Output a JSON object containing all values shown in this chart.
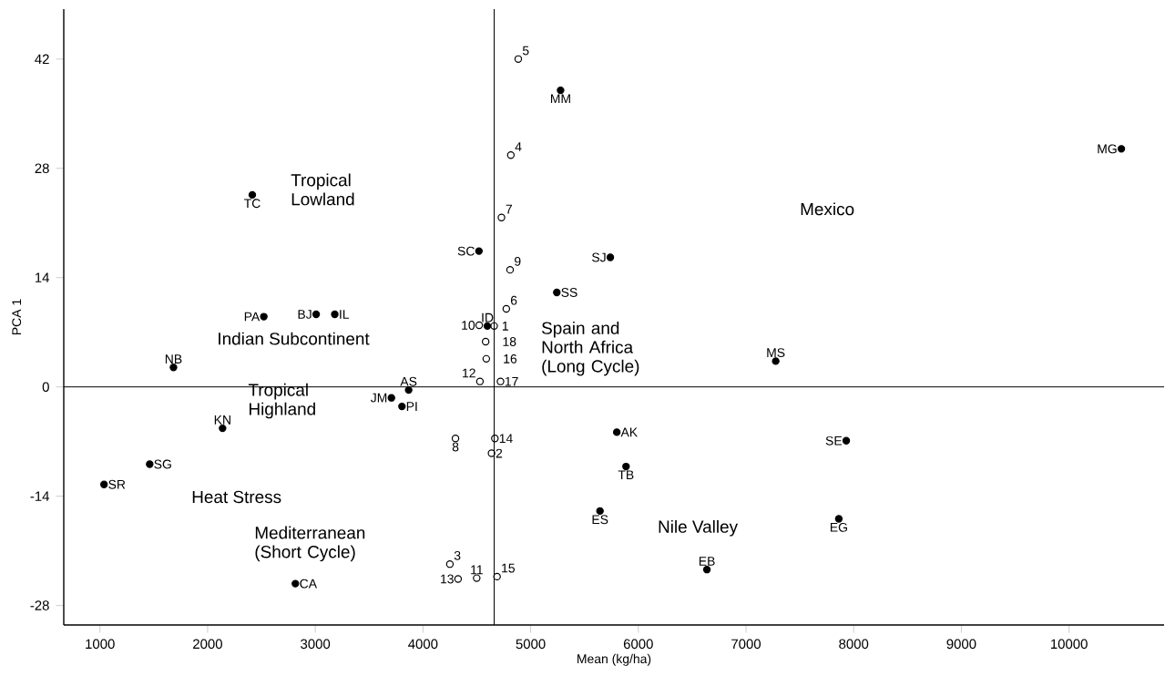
{
  "chart_data": {
    "type": "scatter",
    "xlabel": "Mean (kg/ha)",
    "ylabel": "PCA 1",
    "xlim": [
      664,
      10883
    ],
    "ylim": [
      -30.5,
      48.4
    ],
    "xticks": [
      1000,
      2000,
      3000,
      4000,
      5000,
      6000,
      7000,
      8000,
      9000,
      10000
    ],
    "yticks": [
      -28,
      -14,
      0,
      14,
      28,
      42
    ],
    "marker": "circle",
    "series": [
      {
        "color": "#000000",
        "x": [
          5278,
          10486,
          2415,
          4520,
          5740,
          5243,
          2522,
          3008,
          3181,
          1683,
          7276,
          3867,
          3707,
          3805,
          2139,
          1462,
          1038,
          2815,
          5644,
          5800,
          5886,
          7931,
          7862,
          6637,
          4598
        ],
        "values": [
          38.0,
          30.5,
          24.6,
          17.4,
          16.6,
          12.1,
          9.0,
          9.3,
          9.3,
          2.5,
          3.3,
          -0.4,
          -1.4,
          -2.5,
          -5.3,
          -9.9,
          -12.5,
          -25.2,
          -15.9,
          -5.8,
          -10.2,
          -6.9,
          -16.9,
          -23.4,
          7.8
        ]
      },
      {
        "color": "#000000",
        "x": [
          4885,
          4816,
          4729,
          4809,
          4774,
          4522,
          4661,
          4582,
          4588,
          4529,
          4720,
          4668,
          4637,
          4302,
          4250,
          4326,
          4499,
          4688
        ],
        "values": [
          42.0,
          29.7,
          21.7,
          15.0,
          10.0,
          7.9,
          7.8,
          5.8,
          3.6,
          0.7,
          0.7,
          -6.6,
          -8.5,
          -6.6,
          -22.7,
          -24.6,
          -24.5,
          -24.3
        ]
      }
    ],
    "ref_lines": [
      {
        "axis": "y",
        "value": 0
      },
      {
        "axis": "x",
        "value": 4661
      }
    ],
    "annotations": [
      "Tropical Lowland",
      "Indian Subcontinent",
      "Tropical Highland",
      "Heat Stress",
      "Mediterranean (Short Cycle)",
      "Spain and North Africa (Long Cycle)",
      "Mexico",
      "Nile Valley",
      {
        "text": "MM",
        "x": 5278,
        "y": 38.0
      },
      {
        "text": "MG",
        "x": 10486,
        "y": 30.5
      },
      {
        "text": "TC",
        "x": 2415,
        "y": 24.6
      },
      {
        "text": "SC",
        "x": 4520,
        "y": 17.4
      },
      {
        "text": "SJ",
        "x": 5740,
        "y": 16.6
      },
      {
        "text": "SS",
        "x": 5243,
        "y": 12.1
      },
      {
        "text": "PA",
        "x": 2522,
        "y": 9.0
      },
      {
        "text": "BJ",
        "x": 3008,
        "y": 9.3
      },
      {
        "text": "IL",
        "x": 3181,
        "y": 9.3
      },
      {
        "text": "NB",
        "x": 1683,
        "y": 2.5
      },
      {
        "text": "MS",
        "x": 7276,
        "y": 3.3
      },
      {
        "text": "AS",
        "x": 3867,
        "y": -0.4
      },
      {
        "text": "JM",
        "x": 3707,
        "y": -1.4
      },
      {
        "text": "PI",
        "x": 3805,
        "y": -2.5
      },
      {
        "text": "KN",
        "x": 2139,
        "y": -5.3
      },
      {
        "text": "SG",
        "x": 1462,
        "y": -9.9
      },
      {
        "text": "SR",
        "x": 1038,
        "y": -12.5
      },
      {
        "text": "CA",
        "x": 2815,
        "y": -25.2
      },
      {
        "text": "ES",
        "x": 5644,
        "y": -15.9
      },
      {
        "text": "AK",
        "x": 5800,
        "y": -5.8
      },
      {
        "text": "TB",
        "x": 5886,
        "y": -10.2
      },
      {
        "text": "SE",
        "x": 7931,
        "y": -6.9
      },
      {
        "text": "EG",
        "x": 7862,
        "y": -16.9
      },
      {
        "text": "EB",
        "x": 6637,
        "y": -23.4
      },
      {
        "text": "ID",
        "x": 4598,
        "y": 7.8
      },
      {
        "text": "5",
        "x": 4885,
        "y": 42.0
      },
      {
        "text": "4",
        "x": 4816,
        "y": 29.7
      },
      {
        "text": "7",
        "x": 4729,
        "y": 21.7
      },
      {
        "text": "9",
        "x": 4809,
        "y": 15.0
      },
      {
        "text": "6",
        "x": 4774,
        "y": 10.0
      },
      {
        "text": "10",
        "x": 4522,
        "y": 7.9
      },
      {
        "text": "1",
        "x": 4661,
        "y": 7.8
      },
      {
        "text": "18",
        "x": 4582,
        "y": 5.8
      },
      {
        "text": "16",
        "x": 4588,
        "y": 3.6
      },
      {
        "text": "12",
        "x": 4529,
        "y": 0.7
      },
      {
        "text": "17",
        "x": 4720,
        "y": 0.7
      },
      {
        "text": "14",
        "x": 4668,
        "y": -6.6
      },
      {
        "text": "2",
        "x": 4637,
        "y": -8.5
      },
      {
        "text": "8",
        "x": 4302,
        "y": -6.6
      },
      {
        "text": "3",
        "x": 4250,
        "y": -22.7
      },
      {
        "text": "13",
        "x": 4326,
        "y": -24.6
      },
      {
        "text": "11",
        "x": 4499,
        "y": -24.5
      },
      {
        "text": "15",
        "x": 4688,
        "y": -24.3
      }
    ]
  }
}
